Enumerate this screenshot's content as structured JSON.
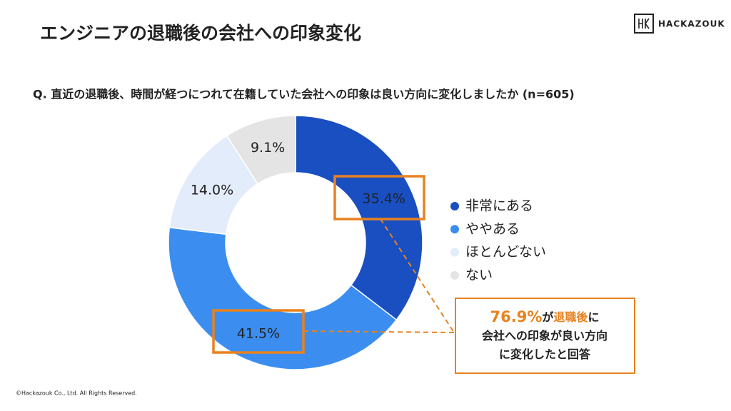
{
  "chart_data": {
    "type": "pie",
    "donut": true,
    "title": "エンジニアの退職後の会社への印象変化",
    "subtitle": "Q.  直近の退職後、時間が経つにつれて在籍していた会社への印象は良い方向に変化しましたか (n=605)",
    "categories": [
      "非常にある",
      "ややある",
      "ほとんどない",
      "ない"
    ],
    "values": [
      35.4,
      41.5,
      14.0,
      9.1
    ],
    "value_labels": [
      "35.4%",
      "41.5%",
      "14.0%",
      "9.1%"
    ],
    "colors": [
      "#1a4fc2",
      "#3b8ef0",
      "#e3ecfa",
      "#e4e4e4"
    ],
    "legend": "right",
    "callout": [
      [
        "76.9%",
        "が",
        "退職後",
        "に"
      ],
      [
        "会社への印象が良い方向"
      ],
      [
        "に変化したと回答"
      ]
    ]
  },
  "logo": "HACKAZOUK",
  "footer": "©Hackazouk Co., Ltd. All Rights Reserved."
}
